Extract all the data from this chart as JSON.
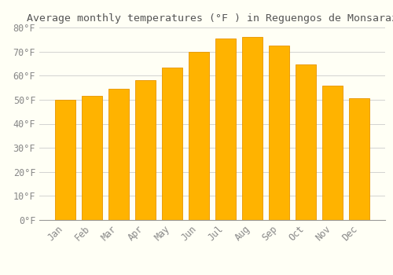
{
  "title": "Average monthly temperatures (°F ) in Reguengos de Monsaraz",
  "months": [
    "Jan",
    "Feb",
    "Mar",
    "Apr",
    "May",
    "Jun",
    "Jul",
    "Aug",
    "Sep",
    "Oct",
    "Nov",
    "Dec"
  ],
  "values": [
    50,
    51.5,
    54.5,
    58,
    63.5,
    70,
    75.5,
    76,
    72.5,
    64.5,
    56,
    50.5
  ],
  "bar_color": "#FFB300",
  "bar_edge_color": "#E69500",
  "background_color": "#FFFFF5",
  "grid_color": "#CCCCCC",
  "text_color": "#888888",
  "title_color": "#555555",
  "ylim": [
    0,
    80
  ],
  "yticks": [
    0,
    10,
    20,
    30,
    40,
    50,
    60,
    70,
    80
  ],
  "title_fontsize": 9.5,
  "tick_fontsize": 8.5,
  "bar_width": 0.75
}
